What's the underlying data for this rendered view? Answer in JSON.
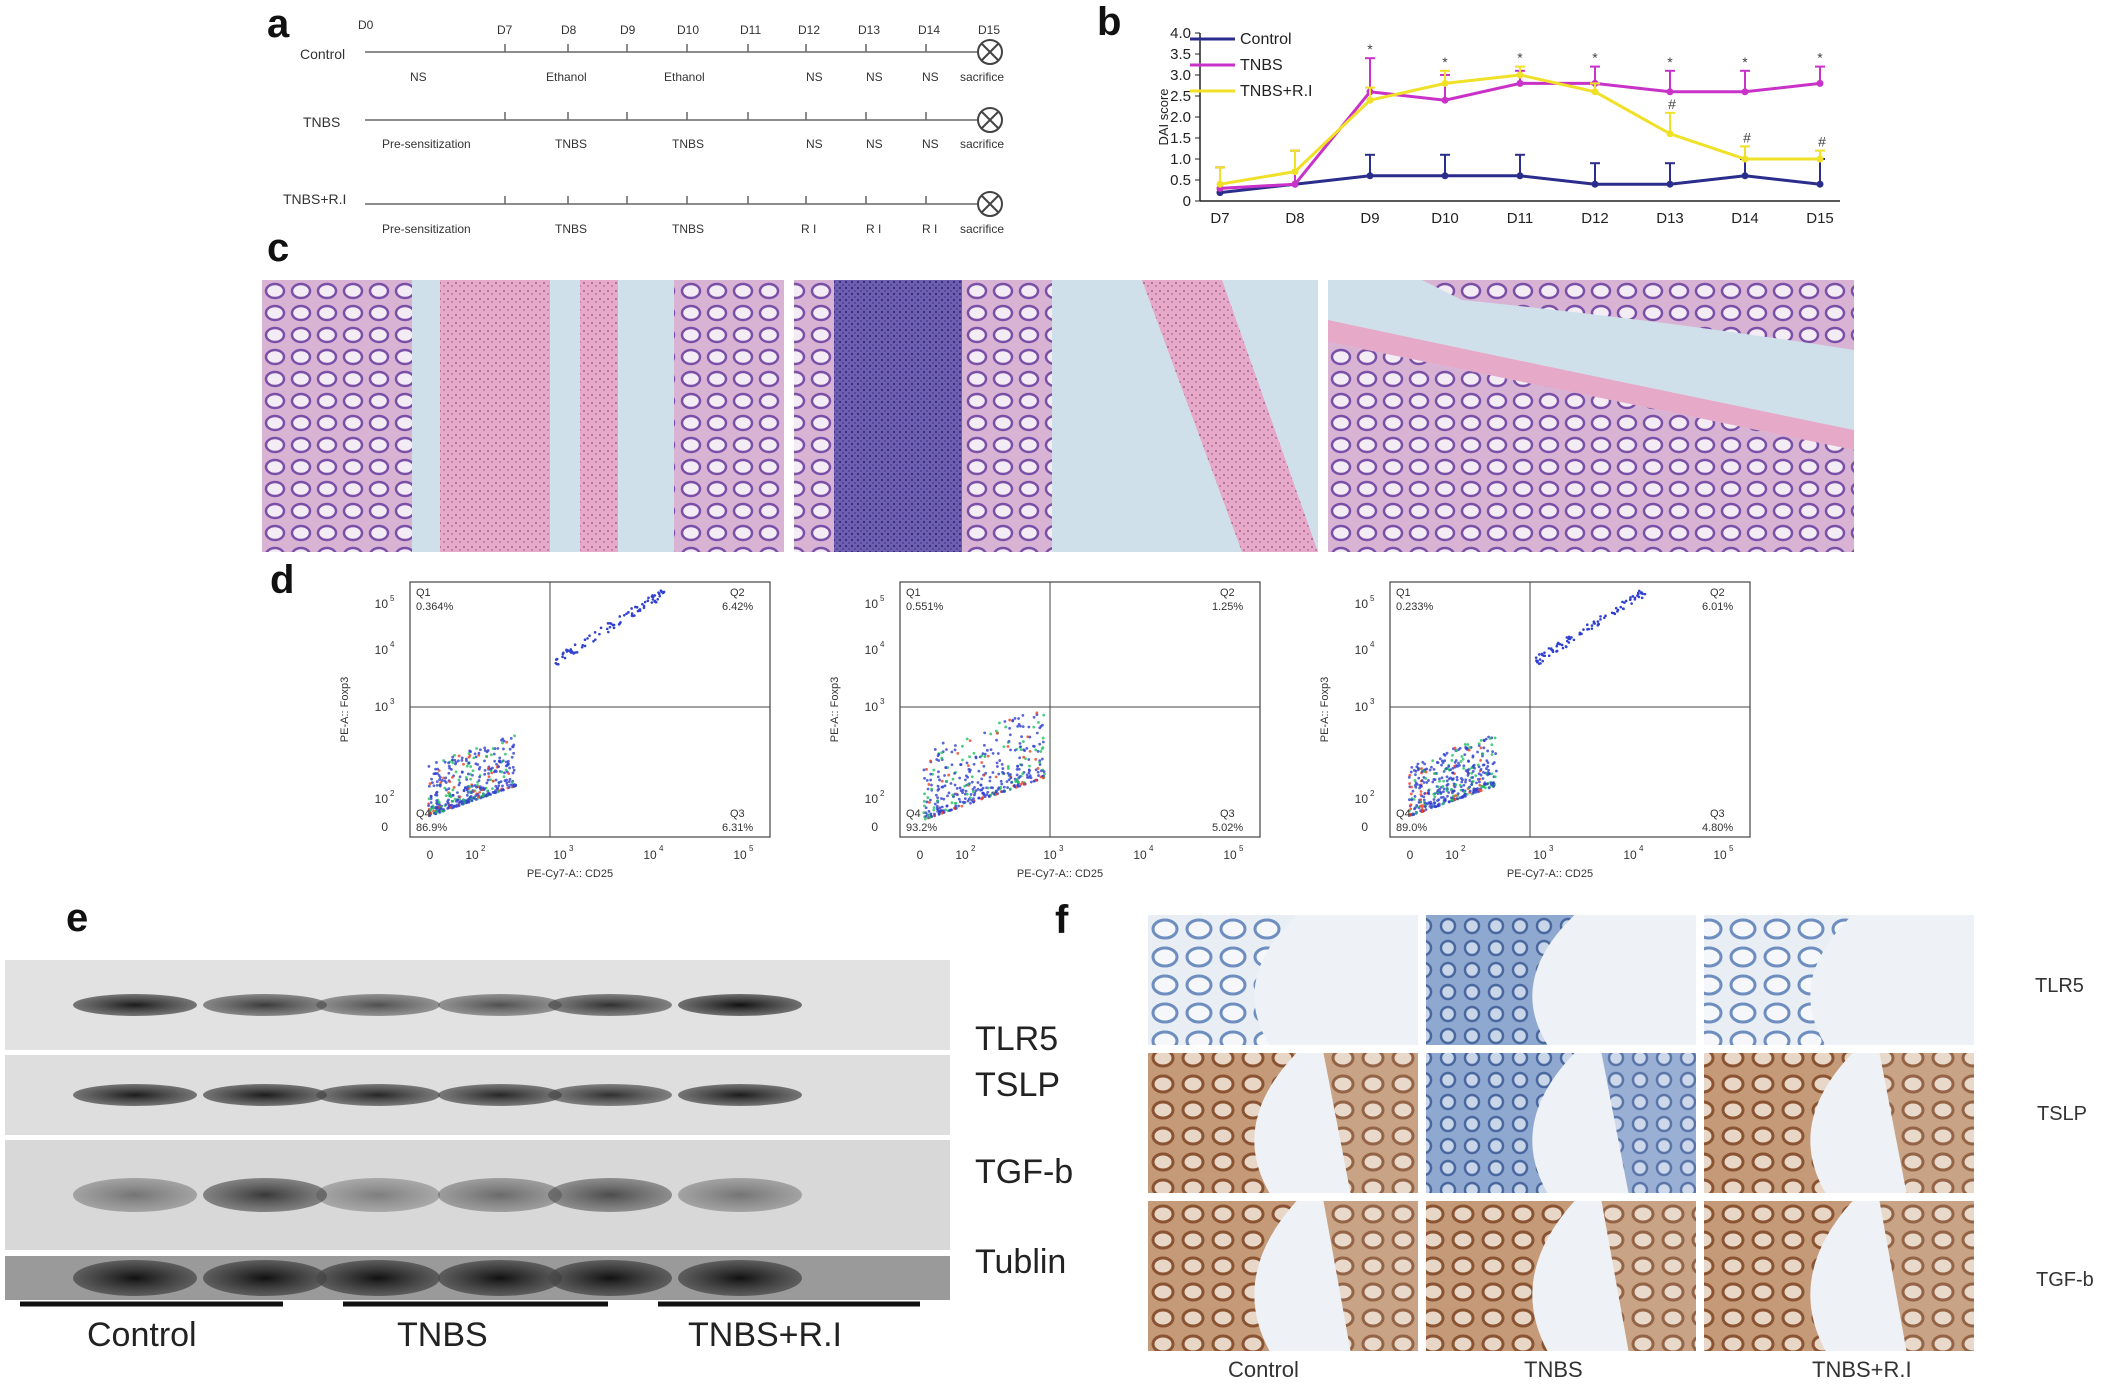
{
  "panels": {
    "a": "a",
    "b": "b",
    "c": "c",
    "d": "d",
    "e": "e",
    "f": "f"
  },
  "timeline": {
    "days": [
      "D0",
      "D7",
      "D8",
      "D9",
      "D10",
      "D11",
      "D12",
      "D13",
      "D14",
      "D15"
    ],
    "rows": [
      {
        "group": "Control",
        "treatments": [
          "NS",
          "Ethanol",
          "Ethanol",
          "NS",
          "NS",
          "NS",
          "sacrifice"
        ]
      },
      {
        "group": "TNBS",
        "treatments": [
          "Pre-sensitization",
          "TNBS",
          "TNBS",
          "NS",
          "NS",
          "NS",
          "sacrifice"
        ]
      },
      {
        "group": "TNBS+R.I",
        "treatments": [
          "Pre-sensitization",
          "TNBS",
          "TNBS",
          "R I",
          "R I",
          "R I",
          "sacrifice"
        ]
      }
    ]
  },
  "chart_data": {
    "type": "line",
    "ylabel": "DAI score",
    "xlabel": "",
    "categories": [
      "D7",
      "D8",
      "D9",
      "D10",
      "D11",
      "D12",
      "D13",
      "D14",
      "D15"
    ],
    "ylim": [
      0,
      4.0
    ],
    "yticks": [
      "0",
      "0.5",
      "1.0",
      "1.5",
      "2.0",
      "2.5",
      "3.0",
      "3.5",
      "4.0"
    ],
    "legend_position": "top-left",
    "series": [
      {
        "name": "Control",
        "color": "#2b2d8c",
        "values": [
          0.2,
          0.4,
          0.6,
          0.6,
          0.6,
          0.4,
          0.4,
          0.6,
          0.4
        ],
        "errors": [
          0.6,
          0.8,
          0.5,
          0.5,
          0.5,
          0.5,
          0.5,
          0.4,
          0.6
        ]
      },
      {
        "name": "TNBS",
        "color": "#c832c8",
        "values": [
          0.3,
          0.4,
          2.6,
          2.4,
          2.8,
          2.8,
          2.6,
          2.6,
          2.8
        ],
        "errors": [
          0.5,
          0.8,
          0.8,
          0.6,
          0.3,
          0.4,
          0.5,
          0.5,
          0.4
        ]
      },
      {
        "name": "TNBS+R.I",
        "color": "#f0e028",
        "values": [
          0.4,
          0.7,
          2.4,
          2.8,
          3.0,
          2.6,
          1.6,
          1.0,
          1.0
        ],
        "errors": [
          0.4,
          0.5,
          0.3,
          0.3,
          0.2,
          0.2,
          0.5,
          0.3,
          0.2
        ]
      }
    ],
    "annotations": {
      "star": [
        "D9",
        "D10",
        "D11",
        "D12",
        "D13",
        "D14",
        "D15"
      ],
      "star_text": "*",
      "hash": [
        "D13",
        "D14",
        "D15"
      ],
      "hash_text": "#"
    }
  },
  "flow": {
    "ylabel": "PE-A:: Foxp3",
    "xlabel": "PE-Cy7-A:: CD25",
    "xticks": [
      "0",
      "10",
      "10",
      "10",
      "10"
    ],
    "xtick_exps": [
      "",
      "2",
      "3",
      "4",
      "5"
    ],
    "yticks": [
      "0",
      "10",
      "10",
      "10",
      "10"
    ],
    "ytick_exps": [
      "",
      "2",
      "3",
      "4",
      "5"
    ],
    "plots": [
      {
        "Q1": "Q1",
        "Q1v": "0.364%",
        "Q2": "Q2",
        "Q2v": "6.42%",
        "Q3": "Q3",
        "Q3v": "6.31%",
        "Q4": "Q4",
        "Q4v": "86.9%"
      },
      {
        "Q1": "Q1",
        "Q1v": "0.551%",
        "Q2": "Q2",
        "Q2v": "1.25%",
        "Q3": "Q3",
        "Q3v": "5.02%",
        "Q4": "Q4",
        "Q4v": "93.2%"
      },
      {
        "Q1": "Q1",
        "Q1v": "0.233%",
        "Q2": "Q2",
        "Q2v": "6.01%",
        "Q3": "Q3",
        "Q3v": "4.80%",
        "Q4": "Q4",
        "Q4v": "89.0%"
      }
    ]
  },
  "western": {
    "bands": [
      "TLR5",
      "TSLP",
      "TGF-b",
      "Tublin"
    ],
    "groups": [
      "Control",
      "TNBS",
      "TNBS+R.I"
    ]
  },
  "ihc": {
    "rows": [
      "TLR5",
      "TSLP",
      "TGF-b"
    ],
    "cols": [
      "Control",
      "TNBS",
      "TNBS+R.I"
    ]
  },
  "colors": {
    "he_pink": "#e7a9c8",
    "he_purple": "#7a4fa8",
    "ihc_blue": "#7f9fc9",
    "ihc_brown": "#a8734a",
    "flow_blue": "#3040d0"
  }
}
